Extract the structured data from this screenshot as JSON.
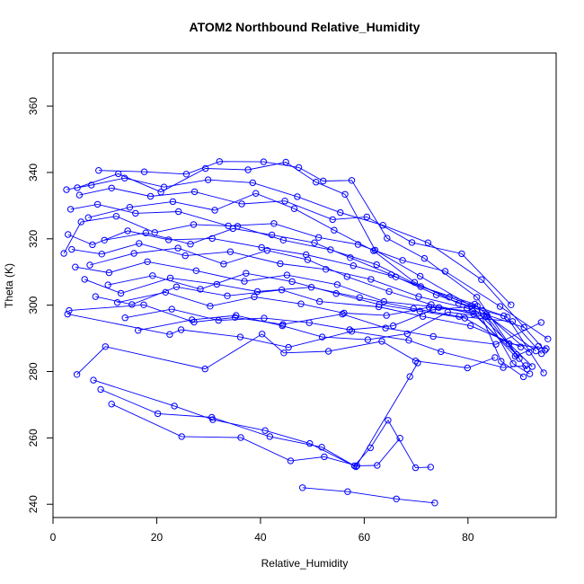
{
  "chart_data": {
    "type": "line",
    "title": "ATOM2 Northbound Relative_Humidity",
    "xlabel": "Relative_Humidity",
    "ylabel": "Theta (K)",
    "xlim": [
      0,
      97
    ],
    "ylim": [
      236,
      376
    ],
    "x_ticks": [
      0,
      20,
      40,
      60,
      80
    ],
    "y_ticks": [
      240,
      260,
      280,
      300,
      320,
      340,
      360
    ],
    "x_tick_labels": [
      "0",
      "20",
      "40",
      "60",
      "80"
    ],
    "y_tick_labels": [
      "240",
      "260",
      "280",
      "300",
      "320",
      "340",
      "360"
    ],
    "grid": false,
    "legend": "none",
    "colors": {
      "series": "#0000ff",
      "axis": "#000000"
    },
    "marker": "open-circle",
    "series": [
      {
        "x": [
          48.1,
          56.8,
          66.2,
          73.6
        ],
        "y": [
          245,
          243.8,
          241.6,
          240.4
        ]
      },
      {
        "x": [
          11.3,
          24.8,
          36.2,
          45.8,
          52.3,
          58.6,
          62.5,
          66.9
        ],
        "y": [
          270.2,
          260.4,
          260.1,
          253.1,
          254.3,
          251.6,
          251.7,
          259.9
        ]
      },
      {
        "x": [
          9.2,
          20.2,
          30.6,
          41.8,
          51.8,
          58.1,
          61.2,
          64.6,
          69.9,
          72.8
        ],
        "y": [
          274.6,
          267.3,
          266.2,
          260.4,
          257.2,
          251.6,
          257,
          265.3,
          251,
          251.2
        ]
      },
      {
        "x": [
          7.8,
          23.4,
          30.8,
          40.9,
          49.5,
          58.4,
          68.8,
          70.3
        ],
        "y": [
          277.4,
          269.6,
          265.5,
          262.2,
          258.3,
          251.3,
          278.5,
          282.6
        ]
      },
      {
        "x": [
          4.6,
          10.1,
          29.3,
          40.3,
          44.5,
          53.1,
          63.4,
          69.9,
          79.9,
          85.2
        ],
        "y": [
          279.1,
          287.5,
          280.8,
          291.3,
          285.6,
          286.1,
          289.1,
          283.2,
          281.1,
          284.2
        ]
      },
      {
        "x": [
          2.8,
          22.5,
          24.7,
          36.1,
          45.4,
          57.6,
          68.6,
          74.8,
          86.8,
          91.1
        ],
        "y": [
          297.3,
          291.2,
          292.6,
          290.4,
          287.3,
          292.1,
          289.4,
          286,
          281.2,
          281.8
        ]
      },
      {
        "x": [
          3.1,
          17.5,
          27.2,
          35.1,
          44.3,
          55.8,
          64.1,
          73.3,
          85.4,
          94.1
        ],
        "y": [
          298.4,
          300.1,
          294.9,
          296.3,
          294.2,
          297.3,
          293.1,
          290.6,
          288.2,
          294.8
        ]
      },
      {
        "x": [
          8.2,
          15.2,
          23.8,
          33.6,
          44.1,
          51.4,
          62.8,
          71.3,
          80.5,
          90.2
        ],
        "y": [
          302.6,
          300.2,
          305.5,
          302.8,
          304.6,
          301.1,
          299.5,
          296.6,
          293.8,
          287.4
        ]
      },
      {
        "x": [
          6.1,
          13.1,
          22.6,
          31.6,
          39.4,
          49.8,
          59.1,
          69.5,
          78.3,
          88.6,
          94.2
        ],
        "y": [
          307.8,
          303.6,
          308.2,
          306.3,
          304.1,
          305.4,
          302.3,
          299,
          296.6,
          295.1,
          285.4
        ]
      },
      {
        "x": [
          4.3,
          10.8,
          18.2,
          27.6,
          36.9,
          45.1,
          54.8,
          63.8,
          74.4,
          83.7,
          93.1
        ],
        "y": [
          311.5,
          309.8,
          313.1,
          310.4,
          307.2,
          309.1,
          306.2,
          301.1,
          299.3,
          296.9,
          286.2
        ]
      },
      {
        "x": [
          3.6,
          9.4,
          16.6,
          25.5,
          34.2,
          43.8,
          52.6,
          61.3,
          70.5,
          79.8,
          90.8
        ],
        "y": [
          316.8,
          315.4,
          318.6,
          314.9,
          316.1,
          312.5,
          310.8,
          307.8,
          302.6,
          299.1,
          293.3
        ]
      },
      {
        "x": [
          2.9,
          7.6,
          14.4,
          22.3,
          30.7,
          40.2,
          48.8,
          57.9,
          66.1,
          76.4,
          86.9
        ],
        "y": [
          321.3,
          318.2,
          322.4,
          319.7,
          320.1,
          317.4,
          315.2,
          311.9,
          308.5,
          302.4,
          296.8
        ]
      },
      {
        "x": [
          2.1,
          5.4,
          12.2,
          19.6,
          27.1,
          35.6,
          44.4,
          53.5,
          62.4,
          70.9,
          81.3,
          91.8
        ],
        "y": [
          315.6,
          325.1,
          326.8,
          321.9,
          324.3,
          323.8,
          319.6,
          316.7,
          312.2,
          305.6,
          300.3,
          285.8
        ]
      },
      {
        "x": [
          3.4,
          8.6,
          15.9,
          24.2,
          33.8,
          42.6,
          51.2,
          58.8,
          67.4,
          75.6,
          86.2,
          95.4
        ],
        "y": [
          328.9,
          330.4,
          327.7,
          328.2,
          323.9,
          324.6,
          320.4,
          318.3,
          313.5,
          310.2,
          299.6,
          289.8
        ]
      },
      {
        "x": [
          5.1,
          11.3,
          18.8,
          27.3,
          36.4,
          44.7,
          53.9,
          60.5,
          69.2,
          78.8,
          88.3
        ],
        "y": [
          333.2,
          335.3,
          332.8,
          334.2,
          330.5,
          331.4,
          325.8,
          326.6,
          318.9,
          315.5,
          300.1
        ]
      },
      {
        "x": [
          2.6,
          7.4,
          13.8,
          21.4,
          29.9,
          38.5,
          47.1,
          55.4,
          63.6,
          72.3,
          82.6,
          94.8
        ],
        "y": [
          334.8,
          336.2,
          338.3,
          335.6,
          337.8,
          336.9,
          332.7,
          327.9,
          324.1,
          318.8,
          307.7,
          286.4
        ]
      },
      {
        "x": [
          8.8,
          17.6,
          25.7,
          32.1,
          40.6,
          47.4,
          52.1,
          57.6,
          64.4,
          71.6,
          81.7,
          89.9
        ],
        "y": [
          340.6,
          340.2,
          339.5,
          343.3,
          343.2,
          341.5,
          337.4,
          337.6,
          320.2,
          314.1,
          302.4,
          283.9
        ]
      },
      {
        "x": [
          4.7,
          12.6,
          20.8,
          29.4,
          37.6,
          44.9,
          50.7,
          56.3,
          62.1,
          70.8,
          80.6,
          92.4
        ],
        "y": [
          335.4,
          339.6,
          334.1,
          341.2,
          340.8,
          343.1,
          337.1,
          333.4,
          316.6,
          308.7,
          299.8,
          281.5
        ]
      },
      {
        "x": [
          6.8,
          14.8,
          23.1,
          31.2,
          39.1,
          46.5,
          54.2,
          61.8,
          69.7,
          78.2,
          87.6,
          94.6
        ],
        "y": [
          326.4,
          329.5,
          331.2,
          328.6,
          333.7,
          329.1,
          322.6,
          316.4,
          306.9,
          300.5,
          296.4,
          279.6
        ]
      },
      {
        "x": [
          9.9,
          17.9,
          26.5,
          34.7,
          42.2,
          50.4,
          57.3,
          65.2,
          73.9,
          82.8,
          91.4
        ],
        "y": [
          319.6,
          321.8,
          318.4,
          323.1,
          321.2,
          318.8,
          314.3,
          309.2,
          303.1,
          298.4,
          280.7
        ]
      },
      {
        "x": [
          7.1,
          15.6,
          24.1,
          32.9,
          41.3,
          49.1,
          56.7,
          64.8,
          72.9,
          81.1,
          89.4
        ],
        "y": [
          312.1,
          315.6,
          317.2,
          312.4,
          316.5,
          313.7,
          308.6,
          304.1,
          300.2,
          297.3,
          285.1
        ]
      },
      {
        "x": [
          10.6,
          19.2,
          28.4,
          37.2,
          46.1,
          54.6,
          62.9,
          70.7,
          79.4,
          87.9,
          95.1
        ],
        "y": [
          306.1,
          308.9,
          304.8,
          309.6,
          307.1,
          303.5,
          300.2,
          298.2,
          296.1,
          288.4,
          286.9
        ]
      },
      {
        "x": [
          12.4,
          21.7,
          30.3,
          38.8,
          47.8,
          56.1,
          64.3,
          72.5,
          80.9,
          89.1,
          93.6
        ],
        "y": [
          300.8,
          303.9,
          299.7,
          302.5,
          300.4,
          297.6,
          296.9,
          299.4,
          298.2,
          284.6,
          287.6
        ]
      },
      {
        "x": [
          13.9,
          22.9,
          31.9,
          40.7,
          49.4,
          57.2,
          65.6,
          73.2,
          81.8,
          86.4,
          90.7
        ],
        "y": [
          296.2,
          298.8,
          295.4,
          296.1,
          294.7,
          292.6,
          293.8,
          298.6,
          299.7,
          283.1,
          278.4
        ]
      },
      {
        "x": [
          16.4,
          26.8,
          35.3,
          44.2,
          51.9,
          60.7,
          68.3,
          76.1,
          83.6,
          88.7,
          91.9
        ],
        "y": [
          292.4,
          295.6,
          296.9,
          293.8,
          290.4,
          289.6,
          291.4,
          297.9,
          296.5,
          282.4,
          279.3
        ]
      }
    ]
  }
}
